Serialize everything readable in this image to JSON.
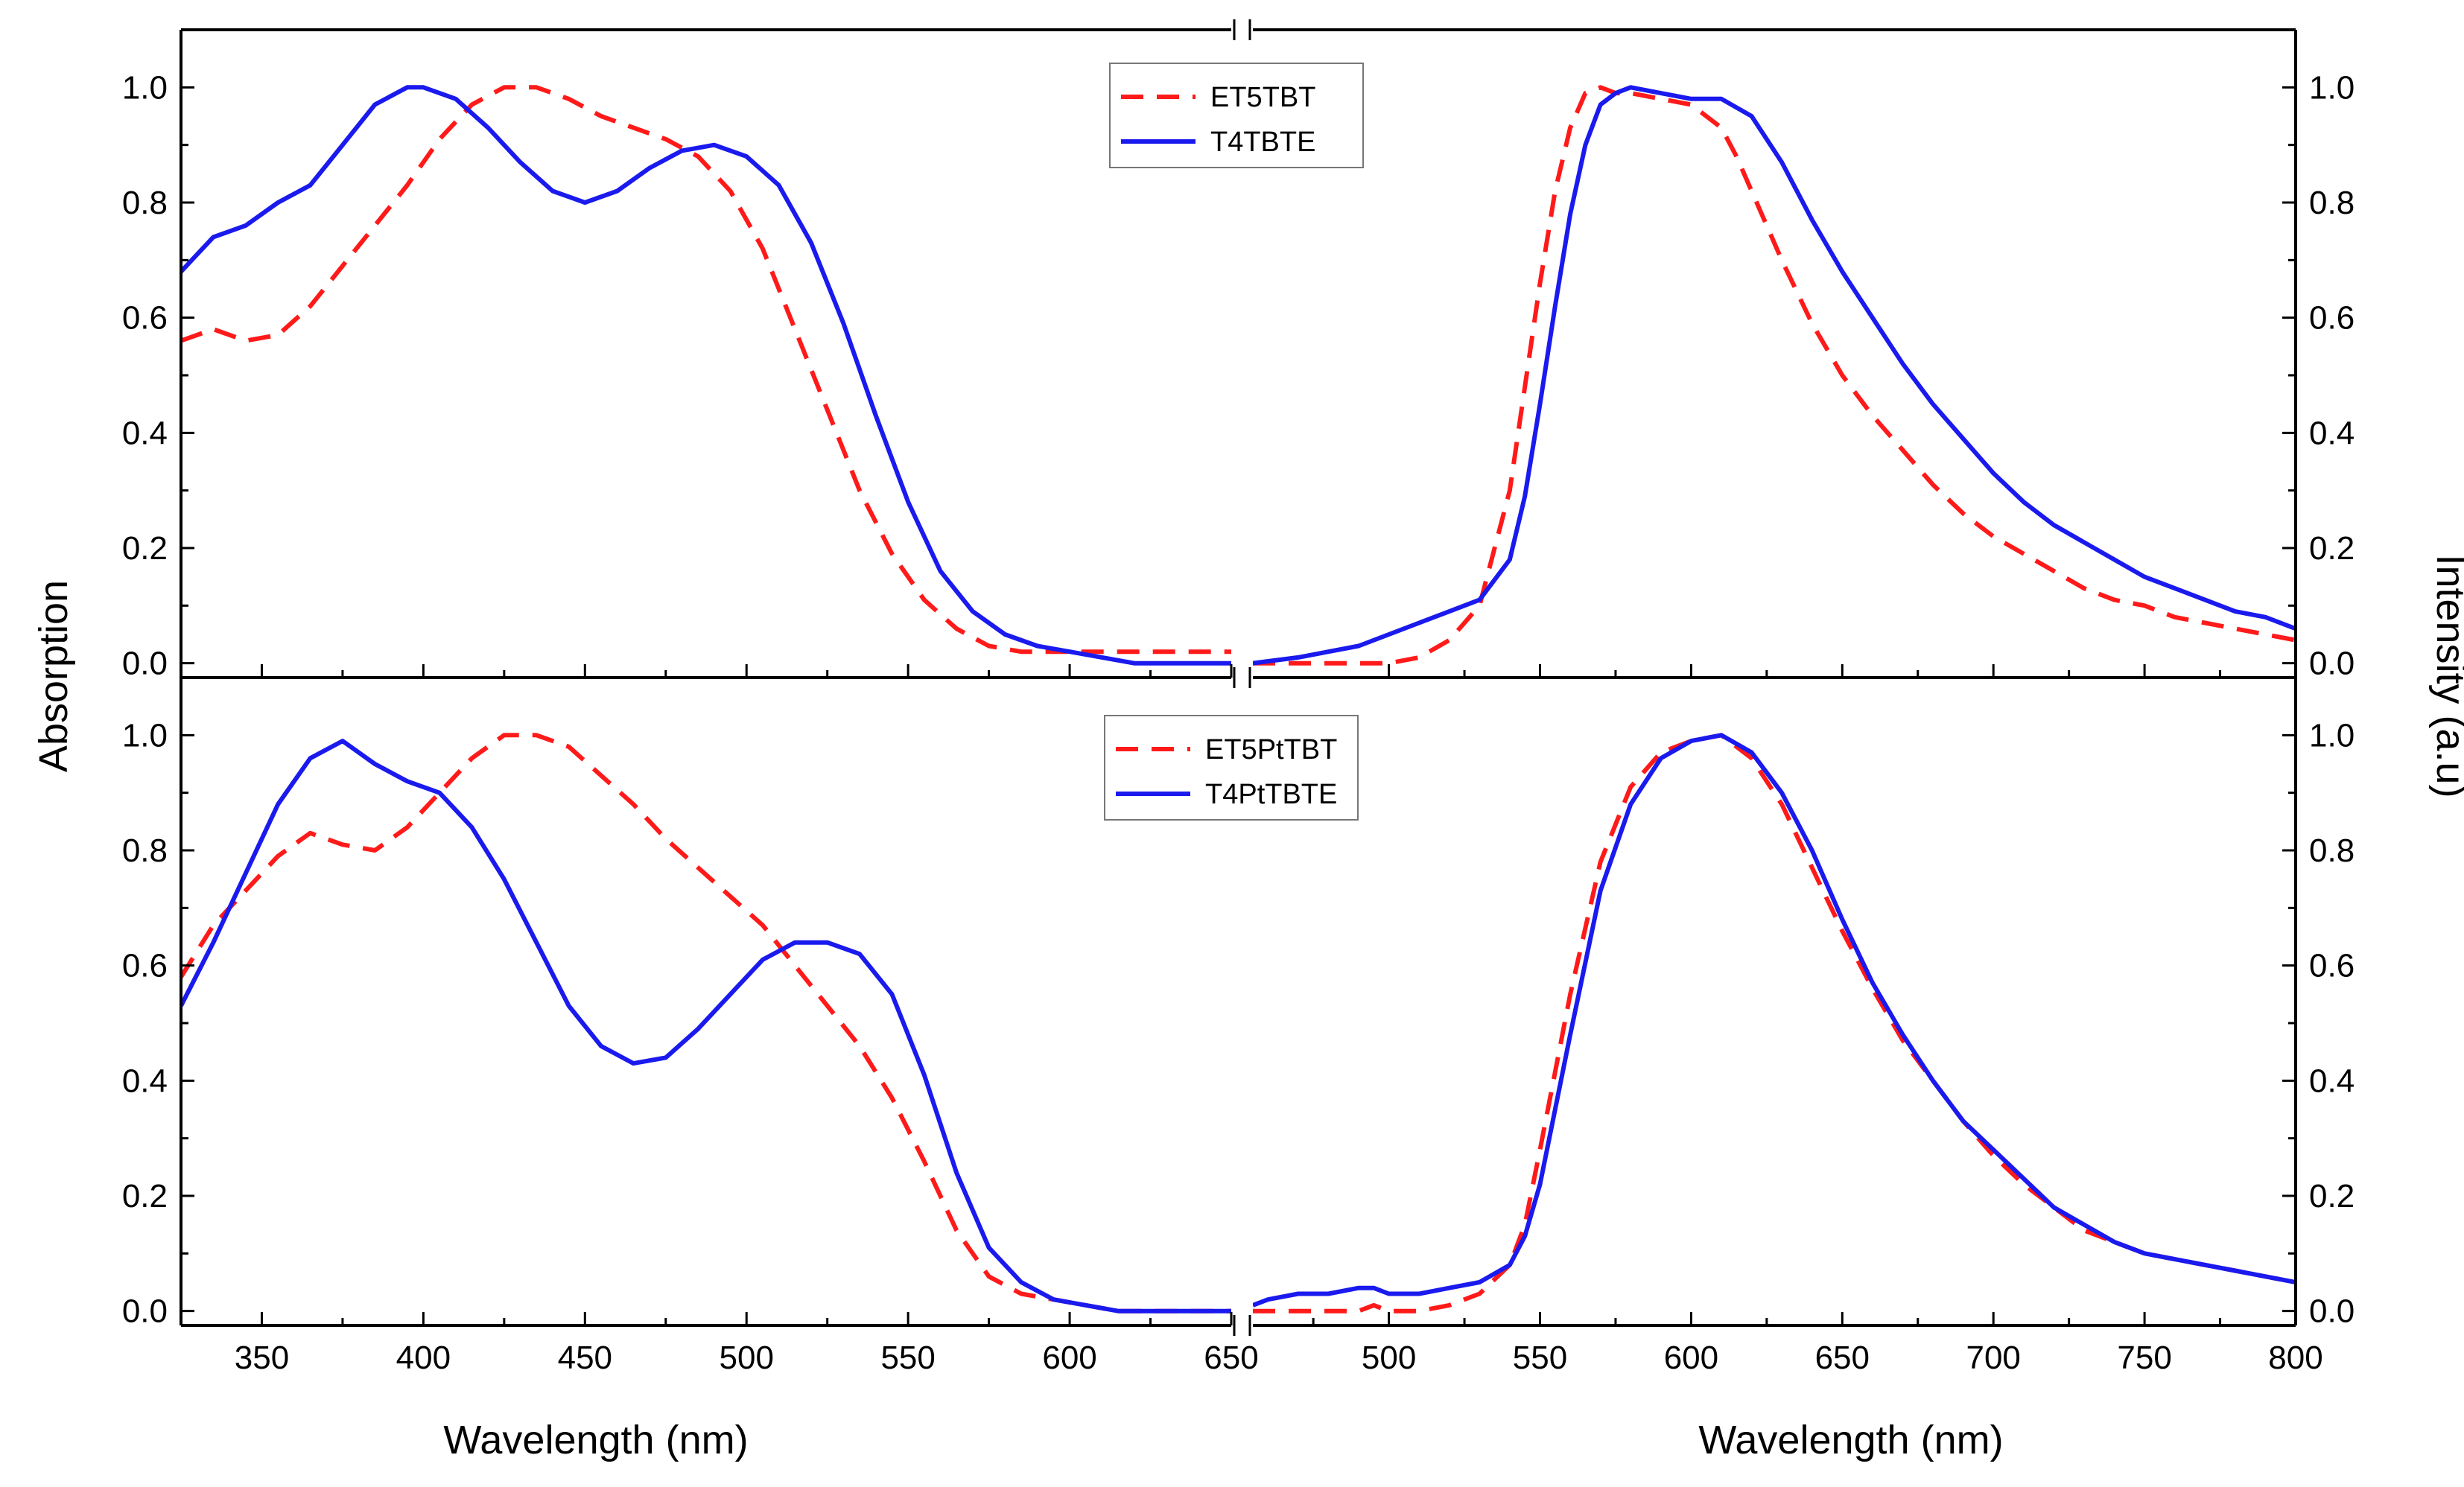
{
  "figure": {
    "left_ylabel": "Absorption",
    "right_ylabel": "Intensity (a.u)",
    "left_xlabel": "Wavelength (nm)",
    "right_xlabel": "Wavelength (nm)"
  },
  "colors": {
    "red": "#ff1a1a",
    "blue": "#1a1aee"
  },
  "chart_data": [
    {
      "id": "top-absorption",
      "type": "line",
      "xlim": [
        325,
        650
      ],
      "ylim": [
        -0.025,
        1.1
      ],
      "xticks": [
        350,
        400,
        450,
        500,
        550,
        600,
        650
      ],
      "yticks": [
        "0.0",
        "0.2",
        "0.4",
        "0.6",
        "0.8",
        "1.0"
      ],
      "xlabel": "",
      "ylabel": "Absorption",
      "series": [
        {
          "name": "ET5TBT",
          "style": "dashed",
          "color": "#ff1a1a",
          "x": [
            325,
            335,
            345,
            355,
            365,
            375,
            385,
            395,
            405,
            415,
            425,
            435,
            445,
            455,
            465,
            475,
            485,
            495,
            505,
            515,
            525,
            535,
            545,
            555,
            565,
            575,
            585,
            595,
            605,
            615,
            625,
            650
          ],
          "y": [
            0.56,
            0.58,
            0.56,
            0.57,
            0.62,
            0.69,
            0.76,
            0.83,
            0.91,
            0.97,
            1.0,
            1.0,
            0.98,
            0.95,
            0.93,
            0.91,
            0.88,
            0.82,
            0.72,
            0.58,
            0.44,
            0.3,
            0.19,
            0.11,
            0.06,
            0.03,
            0.02,
            0.02,
            0.02,
            0.02,
            0.02,
            0.02
          ]
        },
        {
          "name": "T4TBTE",
          "style": "solid",
          "color": "#1a1aee",
          "x": [
            325,
            335,
            345,
            355,
            365,
            375,
            385,
            395,
            400,
            410,
            420,
            430,
            440,
            450,
            460,
            470,
            480,
            490,
            500,
            510,
            520,
            530,
            540,
            550,
            560,
            570,
            580,
            590,
            600,
            610,
            620,
            630,
            650
          ],
          "y": [
            0.68,
            0.74,
            0.76,
            0.8,
            0.83,
            0.9,
            0.97,
            1.0,
            1.0,
            0.98,
            0.93,
            0.87,
            0.82,
            0.8,
            0.82,
            0.86,
            0.89,
            0.9,
            0.88,
            0.83,
            0.73,
            0.59,
            0.43,
            0.28,
            0.16,
            0.09,
            0.05,
            0.03,
            0.02,
            0.01,
            0.0,
            0.0,
            0.0
          ]
        }
      ]
    },
    {
      "id": "top-emission",
      "type": "line",
      "xlim": [
        455,
        800
      ],
      "ylim": [
        -0.025,
        1.1
      ],
      "xticks": [
        500,
        550,
        600,
        650,
        700,
        750,
        800
      ],
      "yticks": [
        "0.0",
        "0.2",
        "0.4",
        "0.6",
        "0.8",
        "1.0"
      ],
      "xlabel": "",
      "ylabel": "Intensity (a.u)",
      "series": [
        {
          "name": "ET5TBT",
          "style": "dashed",
          "color": "#ff1a1a",
          "x": [
            455,
            470,
            480,
            490,
            500,
            510,
            520,
            530,
            540,
            545,
            550,
            555,
            560,
            565,
            570,
            575,
            580,
            590,
            600,
            610,
            615,
            620,
            630,
            640,
            650,
            660,
            670,
            680,
            690,
            700,
            710,
            720,
            730,
            740,
            750,
            760,
            770,
            780,
            790,
            800
          ],
          "y": [
            0.0,
            0.0,
            0.0,
            0.0,
            0.0,
            0.01,
            0.04,
            0.1,
            0.3,
            0.48,
            0.66,
            0.82,
            0.93,
            0.99,
            1.0,
            0.99,
            0.99,
            0.98,
            0.97,
            0.93,
            0.88,
            0.82,
            0.7,
            0.59,
            0.5,
            0.43,
            0.37,
            0.31,
            0.26,
            0.22,
            0.19,
            0.16,
            0.13,
            0.11,
            0.1,
            0.08,
            0.07,
            0.06,
            0.05,
            0.04
          ]
        },
        {
          "name": "T4TBTE",
          "style": "solid",
          "color": "#1a1aee",
          "x": [
            455,
            470,
            480,
            490,
            500,
            510,
            520,
            530,
            540,
            545,
            550,
            555,
            560,
            565,
            570,
            575,
            580,
            590,
            600,
            610,
            620,
            630,
            640,
            650,
            660,
            670,
            680,
            690,
            700,
            710,
            720,
            730,
            740,
            750,
            760,
            770,
            780,
            790,
            800
          ],
          "y": [
            0.0,
            0.01,
            0.02,
            0.03,
            0.05,
            0.07,
            0.09,
            0.11,
            0.18,
            0.29,
            0.45,
            0.62,
            0.78,
            0.9,
            0.97,
            0.99,
            1.0,
            0.99,
            0.98,
            0.98,
            0.95,
            0.87,
            0.77,
            0.68,
            0.6,
            0.52,
            0.45,
            0.39,
            0.33,
            0.28,
            0.24,
            0.21,
            0.18,
            0.15,
            0.13,
            0.11,
            0.09,
            0.08,
            0.06
          ]
        }
      ]
    },
    {
      "id": "bottom-absorption",
      "type": "line",
      "xlim": [
        325,
        650
      ],
      "ylim": [
        -0.025,
        1.1
      ],
      "xticks": [
        350,
        400,
        450,
        500,
        550,
        600,
        650
      ],
      "yticks": [
        "0.0",
        "0.2",
        "0.4",
        "0.6",
        "0.8",
        "1.0"
      ],
      "xlabel": "Wavelength (nm)",
      "ylabel": "Absorption",
      "series": [
        {
          "name": "ET5PtTBT",
          "style": "dashed",
          "color": "#ff1a1a",
          "x": [
            325,
            335,
            345,
            355,
            365,
            375,
            385,
            395,
            405,
            415,
            425,
            435,
            445,
            455,
            465,
            475,
            485,
            495,
            505,
            515,
            525,
            535,
            545,
            555,
            565,
            575,
            585,
            595,
            605,
            615,
            625,
            650
          ],
          "y": [
            0.58,
            0.67,
            0.73,
            0.79,
            0.83,
            0.81,
            0.8,
            0.84,
            0.9,
            0.96,
            1.0,
            1.0,
            0.98,
            0.93,
            0.88,
            0.82,
            0.77,
            0.72,
            0.67,
            0.6,
            0.53,
            0.46,
            0.37,
            0.26,
            0.14,
            0.06,
            0.03,
            0.02,
            0.01,
            0.0,
            0.0,
            0.0
          ]
        },
        {
          "name": "T4PtTBTE",
          "style": "solid",
          "color": "#1a1aee",
          "x": [
            325,
            335,
            345,
            355,
            365,
            375,
            385,
            395,
            405,
            415,
            425,
            435,
            445,
            455,
            465,
            475,
            485,
            495,
            505,
            515,
            525,
            535,
            545,
            555,
            565,
            575,
            585,
            595,
            605,
            615,
            625,
            650
          ],
          "y": [
            0.53,
            0.64,
            0.76,
            0.88,
            0.96,
            0.99,
            0.95,
            0.92,
            0.9,
            0.84,
            0.75,
            0.64,
            0.53,
            0.46,
            0.43,
            0.44,
            0.49,
            0.55,
            0.61,
            0.64,
            0.64,
            0.62,
            0.55,
            0.41,
            0.24,
            0.11,
            0.05,
            0.02,
            0.01,
            0.0,
            0.0,
            0.0
          ]
        }
      ]
    },
    {
      "id": "bottom-emission",
      "type": "line",
      "xlim": [
        455,
        800
      ],
      "ylim": [
        -0.025,
        1.1
      ],
      "xticks": [
        500,
        550,
        600,
        650,
        700,
        750,
        800
      ],
      "yticks": [
        "0.0",
        "0.2",
        "0.4",
        "0.6",
        "0.8",
        "1.0"
      ],
      "xlabel": "Wavelength (nm)",
      "ylabel": "Intensity (a.u)",
      "series": [
        {
          "name": "ET5PtTBT",
          "style": "dashed",
          "color": "#ff1a1a",
          "x": [
            455,
            470,
            480,
            490,
            495,
            500,
            510,
            520,
            530,
            540,
            545,
            550,
            560,
            570,
            580,
            590,
            600,
            610,
            620,
            630,
            640,
            650,
            660,
            670,
            680,
            690,
            700,
            710,
            720,
            730,
            740,
            750,
            760,
            770,
            780,
            790,
            800
          ],
          "y": [
            0.0,
            0.0,
            0.0,
            0.0,
            0.01,
            0.0,
            0.0,
            0.01,
            0.03,
            0.08,
            0.15,
            0.28,
            0.55,
            0.78,
            0.91,
            0.97,
            0.99,
            1.0,
            0.96,
            0.88,
            0.77,
            0.66,
            0.56,
            0.47,
            0.4,
            0.33,
            0.27,
            0.22,
            0.18,
            0.14,
            0.12,
            0.1,
            0.09,
            0.08,
            0.07,
            0.06,
            0.05
          ]
        },
        {
          "name": "T4PtTBTE",
          "style": "solid",
          "color": "#1a1aee",
          "x": [
            455,
            460,
            470,
            480,
            490,
            495,
            500,
            510,
            520,
            530,
            540,
            545,
            550,
            560,
            570,
            580,
            590,
            600,
            610,
            620,
            630,
            640,
            650,
            660,
            670,
            680,
            690,
            700,
            710,
            720,
            730,
            740,
            750,
            760,
            770,
            780,
            790,
            800
          ],
          "y": [
            0.01,
            0.02,
            0.03,
            0.03,
            0.04,
            0.04,
            0.03,
            0.03,
            0.04,
            0.05,
            0.08,
            0.13,
            0.22,
            0.48,
            0.73,
            0.88,
            0.96,
            0.99,
            1.0,
            0.97,
            0.9,
            0.8,
            0.68,
            0.57,
            0.48,
            0.4,
            0.33,
            0.28,
            0.23,
            0.18,
            0.15,
            0.12,
            0.1,
            0.09,
            0.08,
            0.07,
            0.06,
            0.05
          ]
        }
      ]
    }
  ]
}
